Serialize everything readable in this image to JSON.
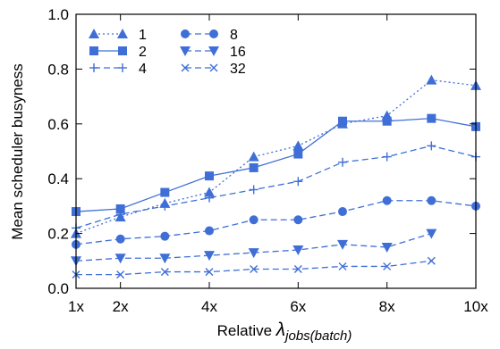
{
  "chart_data": {
    "type": "line",
    "title": "",
    "xlabel_prefix": "Relative ",
    "xlabel_symbol": "λ",
    "xlabel_subscript": "jobs(batch)",
    "ylabel": "Mean scheduler busyness",
    "xlim": [
      1,
      10
    ],
    "ylim": [
      0.0,
      1.0
    ],
    "x_ticks": [
      1,
      2,
      4,
      6,
      8,
      10
    ],
    "x_tick_labels": [
      "1x",
      "2x",
      "4x",
      "6x",
      "8x",
      "10x"
    ],
    "y_ticks": [
      0.0,
      0.2,
      0.4,
      0.6,
      0.8,
      1.0
    ],
    "y_tick_labels": [
      "0.0",
      "0.2",
      "0.4",
      "0.6",
      "0.8",
      "1.0"
    ],
    "grid": false,
    "legend_position": "top-left",
    "color": "#3f6fd6",
    "series": [
      {
        "name": "1",
        "marker": "triangle-up",
        "dash": "dotted",
        "x": [
          1,
          2,
          3,
          4,
          5,
          6,
          7,
          8,
          9,
          10
        ],
        "values": [
          0.2,
          0.26,
          0.31,
          0.35,
          0.48,
          0.52,
          0.6,
          0.63,
          0.76,
          0.74
        ]
      },
      {
        "name": "2",
        "marker": "square",
        "dash": "solid",
        "x": [
          1,
          2,
          3,
          4,
          5,
          6,
          7,
          8,
          9,
          10
        ],
        "values": [
          0.28,
          0.29,
          0.35,
          0.41,
          0.44,
          0.49,
          0.61,
          0.61,
          0.62,
          0.59
        ]
      },
      {
        "name": "4",
        "marker": "plus",
        "dash": "dashed",
        "x": [
          1,
          2,
          3,
          4,
          5,
          6,
          7,
          8,
          9,
          10
        ],
        "values": [
          0.22,
          0.27,
          0.3,
          0.33,
          0.36,
          0.39,
          0.46,
          0.48,
          0.52,
          0.48
        ]
      },
      {
        "name": "8",
        "marker": "circle",
        "dash": "dashed",
        "x": [
          1,
          2,
          3,
          4,
          5,
          6,
          7,
          8,
          9,
          10
        ],
        "values": [
          0.16,
          0.18,
          0.19,
          0.21,
          0.25,
          0.25,
          0.28,
          0.32,
          0.32,
          0.3
        ]
      },
      {
        "name": "16",
        "marker": "triangle-down",
        "dash": "dashed",
        "x": [
          1,
          2,
          3,
          4,
          5,
          6,
          7,
          8,
          9
        ],
        "values": [
          0.1,
          0.11,
          0.11,
          0.12,
          0.13,
          0.14,
          0.16,
          0.15,
          0.2
        ]
      },
      {
        "name": "32",
        "marker": "cross",
        "dash": "dashed",
        "x": [
          1,
          2,
          3,
          4,
          5,
          6,
          7,
          8,
          9
        ],
        "values": [
          0.05,
          0.05,
          0.06,
          0.06,
          0.07,
          0.07,
          0.08,
          0.08,
          0.1
        ]
      }
    ]
  }
}
